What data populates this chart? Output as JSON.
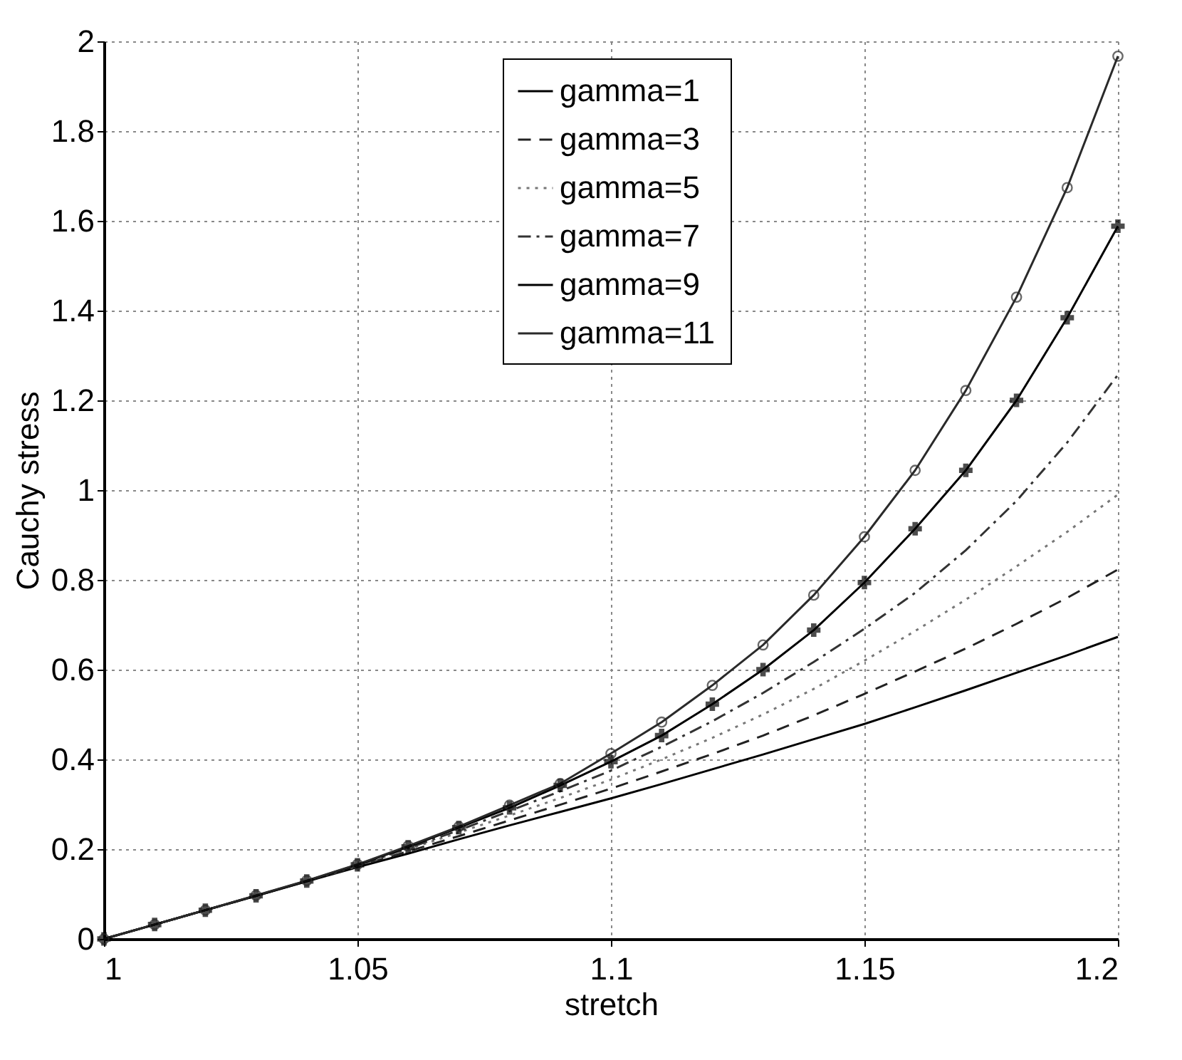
{
  "chart_data": {
    "type": "line",
    "xlabel": "stretch",
    "ylabel": "Cauchy stress",
    "x": [
      1,
      1.01,
      1.02,
      1.03,
      1.04,
      1.05,
      1.06,
      1.07,
      1.08,
      1.09,
      1.1,
      1.11,
      1.12,
      1.13,
      1.14,
      1.15,
      1.16,
      1.17,
      1.18,
      1.19,
      1.2
    ],
    "series": [
      {
        "name": "gamma=1",
        "color": "#000000",
        "line_style": "solid",
        "marker": "none",
        "values": [
          0,
          0.032,
          0.064,
          0.096,
          0.128,
          0.16,
          0.19,
          0.222,
          0.253,
          0.283,
          0.313,
          0.345,
          0.378,
          0.411,
          0.445,
          0.479,
          0.516,
          0.554,
          0.593,
          0.632,
          0.673
        ]
      },
      {
        "name": "gamma=3",
        "color": "#222222",
        "line_style": "dashed",
        "marker": "none",
        "values": [
          0,
          0.032,
          0.064,
          0.096,
          0.129,
          0.162,
          0.195,
          0.229,
          0.264,
          0.299,
          0.335,
          0.373,
          0.412,
          0.453,
          0.498,
          0.546,
          0.596,
          0.647,
          0.702,
          0.76,
          0.823
        ]
      },
      {
        "name": "gamma=5",
        "color": "#777777",
        "line_style": "dotted",
        "marker": "none",
        "values": [
          0,
          0.032,
          0.064,
          0.096,
          0.129,
          0.163,
          0.2,
          0.237,
          0.275,
          0.314,
          0.355,
          0.4,
          0.448,
          0.5,
          0.557,
          0.62,
          0.686,
          0.756,
          0.83,
          0.907,
          0.99
        ]
      },
      {
        "name": "gamma=7",
        "color": "#333333",
        "line_style": "dashdot",
        "marker": "none",
        "values": [
          0,
          0.032,
          0.064,
          0.096,
          0.129,
          0.164,
          0.202,
          0.242,
          0.285,
          0.329,
          0.375,
          0.428,
          0.485,
          0.548,
          0.617,
          0.691,
          0.771,
          0.866,
          0.976,
          1.106,
          1.257
        ]
      },
      {
        "name": "gamma=9",
        "color": "#000000",
        "line_style": "solid",
        "marker": "cross",
        "values": [
          0,
          0.032,
          0.064,
          0.096,
          0.129,
          0.165,
          0.205,
          0.248,
          0.292,
          0.342,
          0.395,
          0.453,
          0.523,
          0.6,
          0.688,
          0.794,
          0.914,
          1.044,
          1.2,
          1.384,
          1.588
        ]
      },
      {
        "name": "gamma=11",
        "color": "#2a2a2a",
        "line_style": "solid",
        "marker": "circle",
        "values": [
          0,
          0.032,
          0.064,
          0.097,
          0.13,
          0.166,
          0.207,
          0.25,
          0.298,
          0.346,
          0.413,
          0.483,
          0.565,
          0.655,
          0.766,
          0.896,
          1.044,
          1.222,
          1.43,
          1.674,
          1.967
        ]
      }
    ],
    "xlim": [
      1,
      1.2
    ],
    "xticks": [
      1,
      1.05,
      1.1,
      1.15,
      1.2
    ],
    "ylim": [
      0,
      2
    ],
    "yticks": [
      0,
      0.2,
      0.4,
      0.6,
      0.8,
      1,
      1.2,
      1.4,
      1.6,
      1.8,
      2
    ],
    "grid": true,
    "legend": "top"
  }
}
